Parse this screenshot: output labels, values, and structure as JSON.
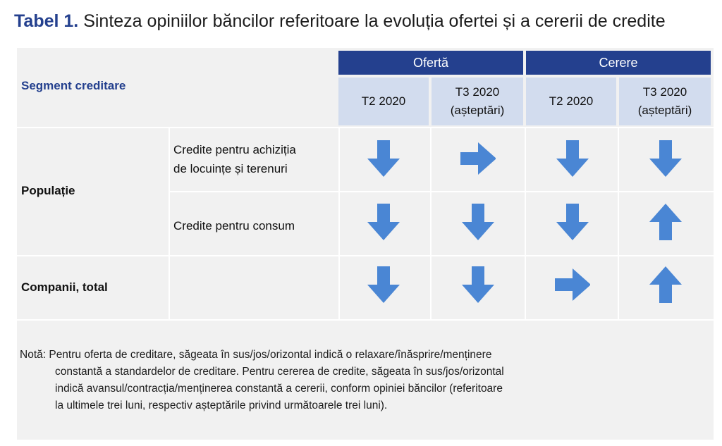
{
  "title": {
    "label": "Tabel 1.",
    "text": "Sinteza opiniilor băncilor referitoare la evoluția ofertei și a cererii de credite"
  },
  "header": {
    "segment": "Segment creditare",
    "groups": {
      "oferta": "Ofertă",
      "cerere": "Cerere"
    },
    "cols": {
      "of_t2": "T2 2020",
      "of_t3_l1": "T3 2020",
      "of_t3_l2": "(așteptări)",
      "ce_t2": "T2 2020",
      "ce_t3_l1": "T3 2020",
      "ce_t3_l2": "(așteptări)"
    }
  },
  "rows": {
    "populatie": "Populație",
    "locuinte_l1": "Credite pentru achiziția",
    "locuinte_l2": "de locuințe și terenuri",
    "consum": "Credite pentru consum",
    "companii": "Companii, total"
  },
  "arrows": {
    "locuinte": [
      "down",
      "right",
      "down",
      "down"
    ],
    "consum": [
      "down",
      "down",
      "down",
      "up"
    ],
    "companii": [
      "down",
      "down",
      "right",
      "up"
    ],
    "color": "#4a86d4"
  },
  "note": {
    "l1": "Notă: Pentru oferta de creditare, săgeata în sus/jos/orizontal indică o relaxare/înăsprire/menținere",
    "l2": "constantă a standardelor de creditare. Pentru cererea de credite, săgeata în sus/jos/orizontal",
    "l3": "indică avansul/contracția/menținerea constantă a cererii, conform opiniei băncilor (referitoare",
    "l4": "la ultimele trei luni, respectiv așteptările privind următoarele trei luni)."
  },
  "colors": {
    "header_dark": "#24408e",
    "header_light": "#d2dcee",
    "panel": "#f1f1f1"
  }
}
